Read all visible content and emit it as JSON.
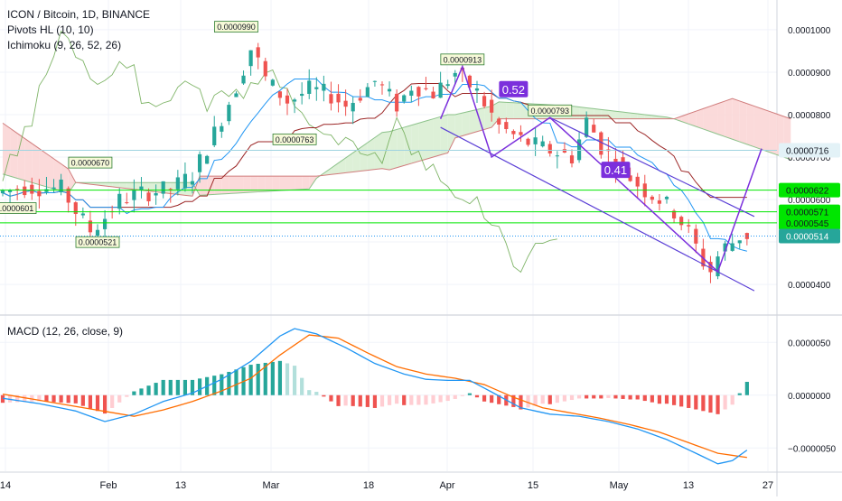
{
  "chart_data": [
    {
      "type": "candlestick",
      "title": "ICON / Bitcoin, 1D, BINANCE",
      "indicators": [
        "Pivots HL (10, 10)",
        "Ichimoku (9, 26, 52, 26)"
      ],
      "ylim": [
        3.3e-05,
        0.000107
      ],
      "y_ticks": [
        "0.0001000",
        "0.0000900",
        "0.0000800",
        "0.0000700",
        "0.0000600",
        "0.0000400"
      ],
      "x_ticks": [
        "14",
        "Feb",
        "13",
        "Mar",
        "18",
        "Apr",
        "15",
        "May",
        "13",
        "27"
      ],
      "pivot_labels": [
        {
          "text": "0.0000990",
          "x": 32,
          "y": 9.9e-05,
          "kind": "high"
        },
        {
          "text": "0.0000913",
          "x": 63,
          "y": 9.13e-05,
          "kind": "high"
        },
        {
          "text": "0.0000793",
          "x": 75,
          "y": 7.93e-05,
          "kind": "high"
        },
        {
          "text": "0.0000670",
          "x": 12,
          "y": 6.7e-05,
          "kind": "high"
        },
        {
          "text": "0.0000763",
          "x": 40,
          "y": 7.63e-05,
          "kind": "low"
        },
        {
          "text": "0.0000521",
          "x": 13,
          "y": 5.21e-05,
          "kind": "low"
        },
        {
          "text": "0.0000601",
          "x": 0,
          "y": 6.01e-05,
          "kind": "low"
        }
      ],
      "horizontal_levels": [
        {
          "value": 7.16e-05,
          "color": "#9fd3e0",
          "label": "0.0000716",
          "label_bg": "#e3f2f7",
          "label_fg": "#131722"
        },
        {
          "value": 6.22e-05,
          "color": "#00e600",
          "label": "0.0000622",
          "label_bg": "#00e600",
          "label_fg": "#131722"
        },
        {
          "value": 5.71e-05,
          "color": "#00e600",
          "label": "0.0000571",
          "label_bg": "#00e600",
          "label_fg": "#131722"
        },
        {
          "value": 5.45e-05,
          "color": "#00e600",
          "label": "0.0000545",
          "label_bg": "#00e600",
          "label_fg": "#131722"
        },
        {
          "value": 5.14e-05,
          "color": "#2196f3",
          "label": "0.0000514",
          "label_bg": "#26a69a",
          "label_fg": "#ffffff",
          "dotted": true
        }
      ],
      "ratio_labels": [
        {
          "text": "0.52",
          "x": 70,
          "y": 8.6e-05
        },
        {
          "text": "0.41",
          "x": 84,
          "y": 6.7e-05
        }
      ],
      "colors": {
        "up": "#26a69a",
        "down": "#ef5350",
        "kumo_bull": "#d9eed3",
        "kumo_bear": "#fbd6d6",
        "pattern": "#7b2fdc",
        "channel": "#5b3fd6"
      }
    },
    {
      "type": "macd",
      "title": "MACD (12, 26, close, 9)",
      "ylim": [
        -7.2e-06,
        7.5e-06
      ],
      "y_ticks": [
        "0.0000050",
        "0.0000000",
        "−0.0000050"
      ],
      "colors": {
        "macd": "#2196f3",
        "signal": "#ff6d00",
        "hist_up_strong": "#26a69a",
        "hist_up_weak": "#b2dfdb",
        "hist_down_strong": "#ef5350",
        "hist_down_weak": "#ffcdd2"
      }
    }
  ]
}
